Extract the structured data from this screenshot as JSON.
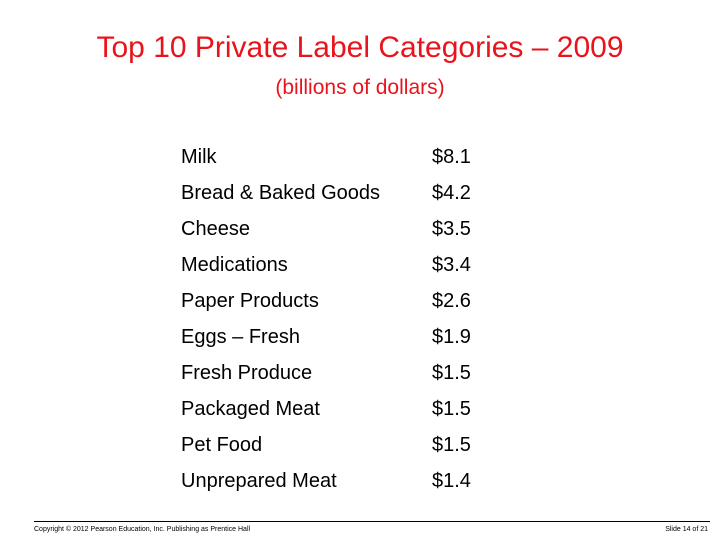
{
  "slide": {
    "title": "Top 10 Private Label Categories – 2009",
    "subtitle": "(billions of dollars)"
  },
  "table": {
    "rows": [
      {
        "category": "Milk",
        "value": "$8.1"
      },
      {
        "category": "Bread & Baked Goods",
        "value": "$4.2"
      },
      {
        "category": "Cheese",
        "value": "$3.5"
      },
      {
        "category": "Medications",
        "value": "$3.4"
      },
      {
        "category": "Paper Products",
        "value": "$2.6"
      },
      {
        "category": "Eggs – Fresh",
        "value": "$1.9"
      },
      {
        "category": "Fresh Produce",
        "value": "$1.5"
      },
      {
        "category": "Packaged Meat",
        "value": "$1.5"
      },
      {
        "category": "Pet Food",
        "value": "$1.5"
      },
      {
        "category": "Unprepared Meat",
        "value": "$1.4"
      }
    ]
  },
  "footer": {
    "copyright": "Copyright © 2012 Pearson Education, Inc. Publishing as Prentice Hall",
    "slide_number": "Slide 14 of 21"
  },
  "colors": {
    "title": "#e8141c",
    "text": "#000000",
    "background": "#ffffff"
  }
}
